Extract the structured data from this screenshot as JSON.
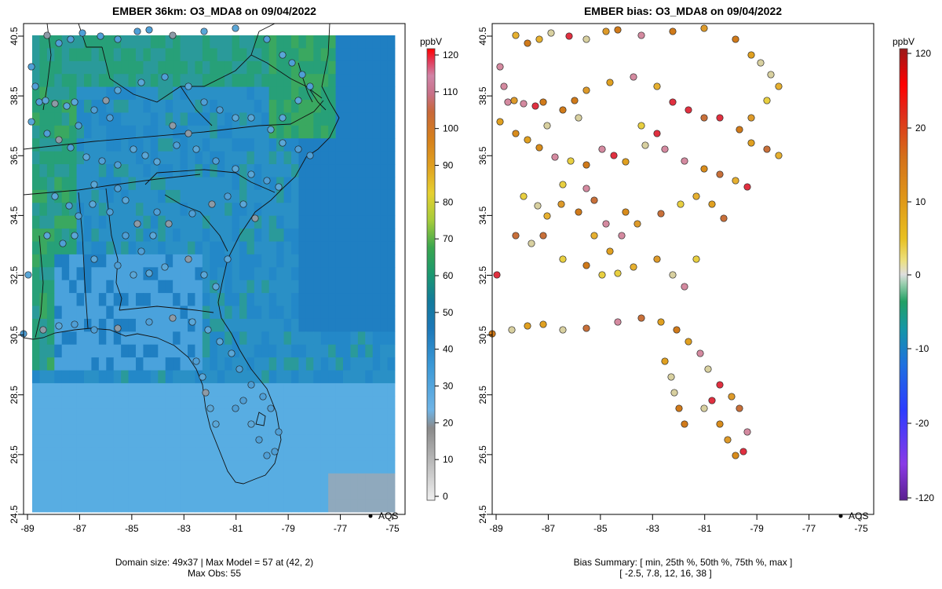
{
  "left_panel": {
    "title": "EMBER 36km: O3_MDA8 on 09/04/2022",
    "footer_line1": "Domain size: 49x37 | Max Model = 57 at (42, 2)",
    "footer_line2": "Max Obs: 55",
    "legend_label": "AQS",
    "x_ticks": [
      "-89",
      "-87",
      "-85",
      "-83",
      "-81",
      "-79",
      "-77",
      "-75"
    ],
    "y_ticks": [
      "40.5",
      "38.5",
      "36.5",
      "34.5",
      "32.5",
      "30.5",
      "28.5",
      "26.5",
      "24.5"
    ],
    "colorbar": {
      "unit": "ppbV",
      "ticks": [
        "120",
        "110",
        "100",
        "90",
        "80",
        "70",
        "60",
        "50",
        "40",
        "30",
        "20",
        "10",
        "0"
      ]
    }
  },
  "right_panel": {
    "title": "EMBER bias: O3_MDA8 on 09/04/2022",
    "footer_line1": "Bias Summary: [ min, 25th %, 50th %, 75th %, max ]",
    "footer_line2": "[ -2.5,   7.8,   12,   16,   38 ]",
    "legend_label": "AQS",
    "x_ticks": [
      "-89",
      "-87",
      "-85",
      "-83",
      "-81",
      "-79",
      "-77",
      "-75"
    ],
    "y_ticks": [
      "40.5",
      "38.5",
      "36.5",
      "34.5",
      "32.5",
      "30.5",
      "28.5",
      "26.5",
      "24.5"
    ],
    "colorbar": {
      "unit": "ppbV",
      "ticks": [
        "120",
        "20",
        "10",
        "0",
        "-10",
        "-20",
        "-120"
      ]
    }
  },
  "colors": {
    "conc_scale": [
      "#e0e0e0",
      "#b0b0b0",
      "#808080",
      "#6aaee0",
      "#4a9ede",
      "#2a86c8",
      "#1670b0",
      "#127d9a",
      "#1b9e77",
      "#35a85a",
      "#66bd3c",
      "#c4d43a",
      "#e6c030",
      "#e09a20",
      "#d8781a",
      "#c46030",
      "#c46a7a",
      "#d07aa0",
      "#e03050",
      "#ff0000"
    ],
    "bias_scale": [
      "#5a1f8f",
      "#8a2be2",
      "#3a3aff",
      "#1e60ff",
      "#1a80c0",
      "#16a0a0",
      "#1aa060",
      "#7dc49a",
      "#d8d8d8",
      "#e8e070",
      "#e6c020",
      "#e6a020",
      "#d88010",
      "#d06020",
      "#e02020",
      "#ff0000",
      "#a01818"
    ],
    "ocean_model": "#1f82c4",
    "land_model": "#2f8fcf",
    "ne_model": "#2a9a8a"
  }
}
